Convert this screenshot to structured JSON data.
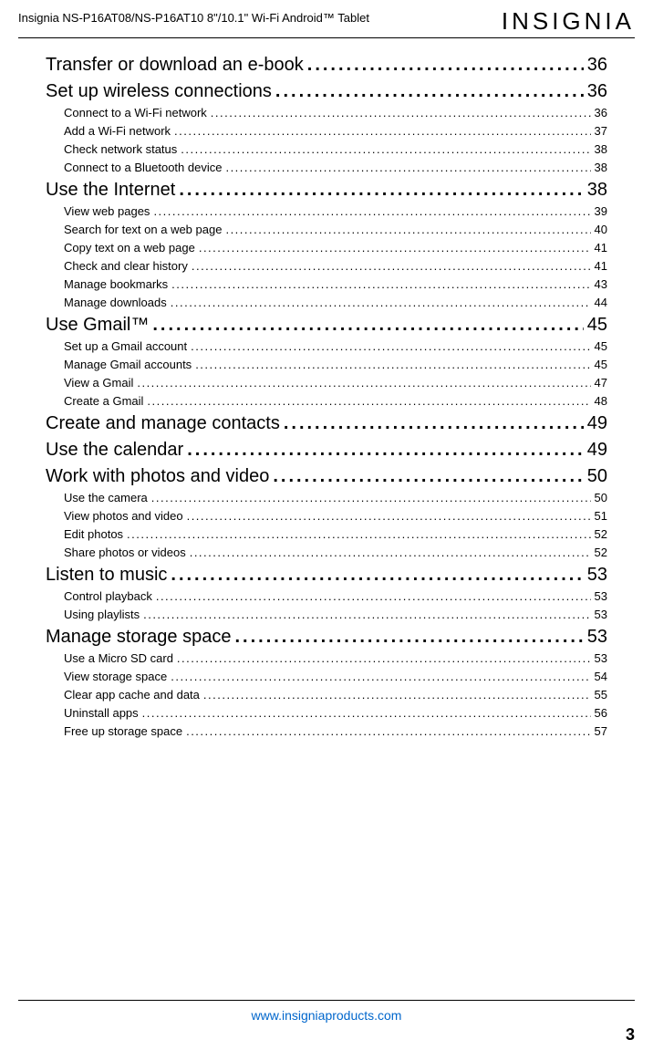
{
  "header": {
    "product_line": "Insignia  NS-P16AT08/NS-P16AT10  8\"/10.1\" Wi-Fi Android™ Tablet",
    "brand": "INSIGNIA"
  },
  "toc": [
    {
      "level": "main",
      "title": "Transfer or download an e-book",
      "page": "36"
    },
    {
      "level": "main",
      "title": "Set up wireless connections",
      "page": "36"
    },
    {
      "level": "sub",
      "title": "Connect to a Wi-Fi network",
      "page": "36"
    },
    {
      "level": "sub",
      "title": "Add a Wi-Fi network",
      "page": "37"
    },
    {
      "level": "sub",
      "title": "Check network status",
      "page": "38"
    },
    {
      "level": "sub",
      "title": "Connect to a Bluetooth device",
      "page": "38"
    },
    {
      "level": "main",
      "title": "Use the Internet",
      "page": "38"
    },
    {
      "level": "sub",
      "title": "View web pages",
      "page": "39"
    },
    {
      "level": "sub",
      "title": "Search for text on a web page",
      "page": "40"
    },
    {
      "level": "sub",
      "title": "Copy text on a web page",
      "page": "41"
    },
    {
      "level": "sub",
      "title": "Check and clear history",
      "page": "41"
    },
    {
      "level": "sub",
      "title": "Manage bookmarks",
      "page": "43"
    },
    {
      "level": "sub",
      "title": "Manage downloads",
      "page": "44"
    },
    {
      "level": "main",
      "title": "Use Gmail™",
      "page": "45"
    },
    {
      "level": "sub",
      "title": "Set up a Gmail account",
      "page": "45"
    },
    {
      "level": "sub",
      "title": "Manage Gmail accounts",
      "page": "45"
    },
    {
      "level": "sub",
      "title": "View a Gmail",
      "page": "47"
    },
    {
      "level": "sub",
      "title": "Create a Gmail",
      "page": "48"
    },
    {
      "level": "main",
      "title": "Create and manage contacts",
      "page": "49"
    },
    {
      "level": "main",
      "title": "Use the calendar",
      "page": "49"
    },
    {
      "level": "main",
      "title": "Work with photos and video",
      "page": "50"
    },
    {
      "level": "sub",
      "title": "Use the camera",
      "page": "50"
    },
    {
      "level": "sub",
      "title": "View photos and video",
      "page": "51"
    },
    {
      "level": "sub",
      "title": "Edit photos",
      "page": "52"
    },
    {
      "level": "sub",
      "title": "Share photos or videos",
      "page": "52"
    },
    {
      "level": "main",
      "title": "Listen to music",
      "page": "53"
    },
    {
      "level": "sub",
      "title": "Control playback",
      "page": "53"
    },
    {
      "level": "sub",
      "title": "Using playlists",
      "page": "53"
    },
    {
      "level": "main",
      "title": "Manage storage space",
      "page": "53"
    },
    {
      "level": "sub",
      "title": "Use a Micro SD card",
      "page": "53"
    },
    {
      "level": "sub",
      "title": "View storage space",
      "page": "54"
    },
    {
      "level": "sub",
      "title": "Clear app cache and data",
      "page": "55"
    },
    {
      "level": "sub",
      "title": "Uninstall apps",
      "page": "56"
    },
    {
      "level": "sub",
      "title": "Free up storage space",
      "page": "57"
    }
  ],
  "footer": {
    "url": "www.insigniaproducts.com",
    "page_number": "3"
  }
}
